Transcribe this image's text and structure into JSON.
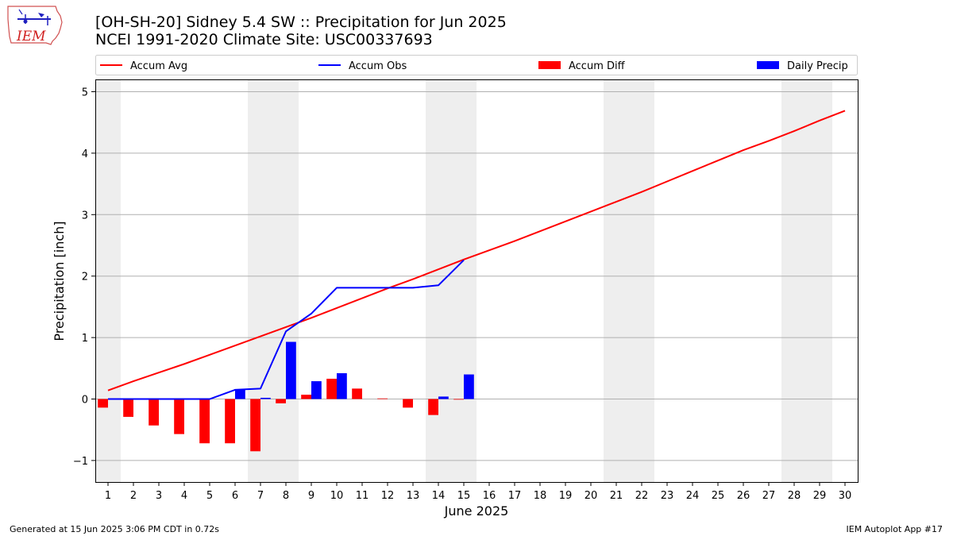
{
  "header": {
    "title_line1": "[OH-SH-20] Sidney 5.4 SW :: Precipitation for Jun 2025",
    "title_line2": "NCEI 1991-2020 Climate Site: USC00337693"
  },
  "logo": {
    "text": "IEM"
  },
  "footer": {
    "generated": "Generated at 15 Jun 2025 3:06 PM CDT in 0.72s",
    "app": "IEM Autoplot App #17"
  },
  "chart_data": {
    "type": "bar",
    "xlabel": "June 2025",
    "ylabel": "Precipitation [inch]",
    "xlim": [
      0.5,
      30.5
    ],
    "ylim": [
      -1.35,
      5.2
    ],
    "xticks": [
      1,
      2,
      3,
      4,
      5,
      6,
      7,
      8,
      9,
      10,
      11,
      12,
      13,
      14,
      15,
      16,
      17,
      18,
      19,
      20,
      21,
      22,
      23,
      24,
      25,
      26,
      27,
      28,
      29,
      30
    ],
    "yticks": [
      -1,
      0,
      1,
      2,
      3,
      4,
      5
    ],
    "ytick_labels": [
      "−1",
      "0",
      "1",
      "2",
      "3",
      "4",
      "5"
    ],
    "grid": "horizontal",
    "weekend_shading_days": [
      1,
      7,
      8,
      14,
      15,
      21,
      22,
      28,
      29
    ],
    "legend_position": "top",
    "legend": [
      {
        "name": "Accum Avg",
        "kind": "line",
        "color": "#ff0000"
      },
      {
        "name": "Accum Obs",
        "kind": "line",
        "color": "#0000ff"
      },
      {
        "name": "Accum Diff",
        "kind": "bar",
        "color": "#ff0000"
      },
      {
        "name": "Daily Precip",
        "kind": "bar",
        "color": "#0000ff"
      }
    ],
    "accum_avg": {
      "x": [
        1,
        2,
        3,
        4,
        5,
        6,
        7,
        8,
        9,
        10,
        11,
        12,
        13,
        14,
        15,
        16,
        17,
        18,
        19,
        20,
        21,
        22,
        23,
        24,
        25,
        26,
        27,
        28,
        29,
        30
      ],
      "values": [
        0.14,
        0.29,
        0.43,
        0.57,
        0.72,
        0.87,
        1.02,
        1.17,
        1.32,
        1.48,
        1.64,
        1.8,
        1.95,
        2.11,
        2.27,
        2.42,
        2.57,
        2.73,
        2.89,
        3.05,
        3.21,
        3.37,
        3.54,
        3.71,
        3.88,
        4.05,
        4.2,
        4.36,
        4.53,
        4.69
      ]
    },
    "accum_obs": {
      "x": [
        1,
        2,
        3,
        4,
        5,
        6,
        7,
        8,
        9,
        10,
        11,
        12,
        13,
        14,
        15
      ],
      "values": [
        0.0,
        0.0,
        0.0,
        0.0,
        0.0,
        0.15,
        0.17,
        1.1,
        1.39,
        1.81,
        1.81,
        1.81,
        1.81,
        1.85,
        2.26
      ]
    },
    "accum_diff": {
      "x": [
        1,
        2,
        3,
        4,
        5,
        6,
        7,
        8,
        9,
        10,
        11,
        12,
        13,
        14,
        15
      ],
      "values": [
        -0.14,
        -0.29,
        -0.43,
        -0.57,
        -0.72,
        -0.72,
        -0.85,
        -0.07,
        0.07,
        0.33,
        0.17,
        0.01,
        -0.14,
        -0.26,
        -0.01
      ]
    },
    "daily_precip": {
      "x": [
        1,
        2,
        3,
        4,
        5,
        6,
        7,
        8,
        9,
        10,
        11,
        12,
        13,
        14,
        15
      ],
      "values": [
        0,
        0,
        0,
        0,
        0,
        0.15,
        0.02,
        0.93,
        0.29,
        0.42,
        0,
        0,
        0,
        0.04,
        0.4
      ]
    },
    "colors": {
      "red": "#ff0000",
      "blue": "#0000ff",
      "shade": "#eeeeee",
      "grid": "#b0b0b0"
    }
  }
}
